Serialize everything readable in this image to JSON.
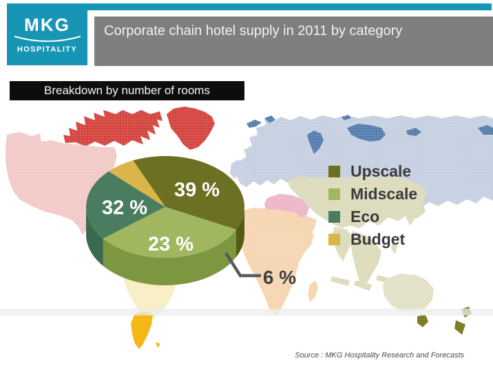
{
  "header": {
    "brand": {
      "name": "MKG",
      "tagline": "HOSPITALITY",
      "background": "#1795B5"
    },
    "title": "Corporate chain hotel supply in 2011 by category",
    "title_bar_color": "#7F7F7F"
  },
  "section_label": "Breakdown by number of rooms",
  "source_note": "Source : MKG Hospitality Research and Forecasts",
  "chart_data": {
    "type": "pie",
    "title": "Corporate chain hotel supply in 2011 by category",
    "subtitle": "Breakdown by number of rooms",
    "unit": "%",
    "style": "3d-pie",
    "start_angle_deg": 246,
    "direction": "clockwise",
    "background": "world-map",
    "legend_position": "right",
    "slices": [
      {
        "label": "Upscale",
        "value": 39,
        "display": "39 %",
        "color": "#6B7022",
        "side_color": "#555A18"
      },
      {
        "label": "Midscale",
        "value": 32,
        "display": "32 %",
        "color": "#A0B75F",
        "side_color": "#7C973F"
      },
      {
        "label": "Eco",
        "value": 23,
        "display": "23 %",
        "color": "#4A7D5F",
        "side_color": "#3A6A4E"
      },
      {
        "label": "Budget",
        "value": 6,
        "display": "6 %",
        "color": "#D9B54A",
        "side_color": "#BD9B33"
      }
    ]
  }
}
